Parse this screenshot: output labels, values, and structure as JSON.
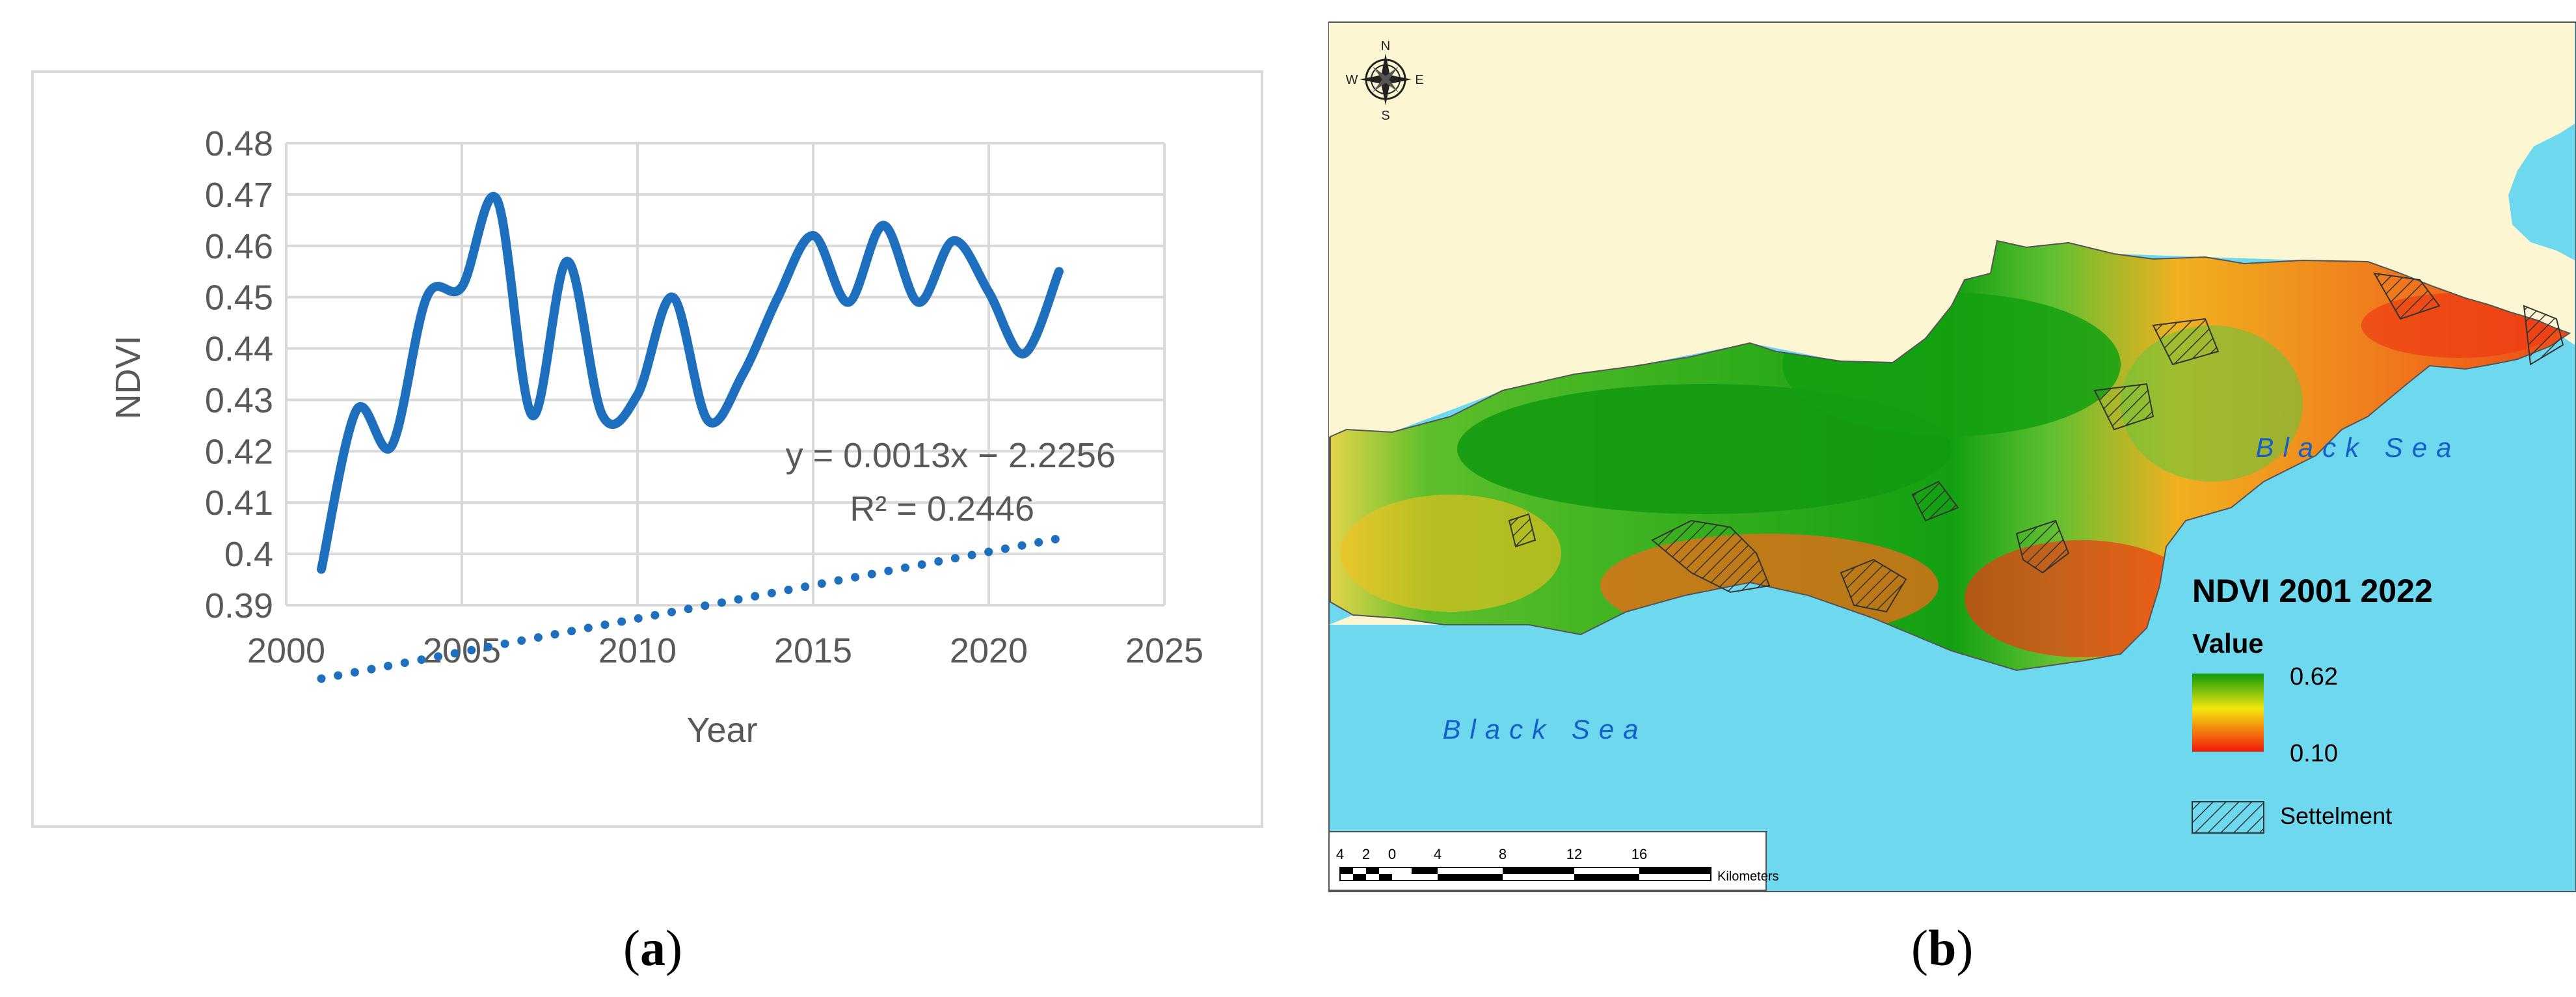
{
  "panel_a": {
    "label_open": "(",
    "label_letter": "a",
    "label_close": ")",
    "equation": "y = 0.0013x − 2.2256",
    "r_squared": "R² = 0.2446"
  },
  "panel_b": {
    "label_open": "(",
    "label_letter": "b",
    "label_close": ")",
    "legend_title": "NDVI 2001 2022",
    "legend_value_heading": "Value",
    "legend_high": "0.62",
    "legend_low": "0.10",
    "legend_settlement": "Settelment",
    "sea_label_east": "Black Sea",
    "sea_label_south": "Black Sea",
    "compass_n": "N",
    "compass_s": "S",
    "compass_e": "E",
    "compass_w": "W",
    "scale_ticks": [
      "4",
      "2",
      "0",
      "4",
      "8",
      "12",
      "16"
    ],
    "scale_unit": "Kilometers",
    "colors": {
      "land": "#fcf6d2",
      "sea": "#6ed8ee",
      "high": "#0a9a0a",
      "mid": "#f5e60f",
      "low": "#f01a0a"
    }
  },
  "chart_data": {
    "type": "line",
    "xlabel": "Year",
    "ylabel": "NDVI",
    "xlim": [
      2000,
      2025
    ],
    "ylim": [
      0.39,
      0.48
    ],
    "x_ticks": [
      "2000",
      "2005",
      "2010",
      "2015",
      "2020",
      "2025"
    ],
    "y_ticks": [
      "0.48",
      "0.47",
      "0.46",
      "0.45",
      "0.44",
      "0.43",
      "0.42",
      "0.41",
      "0.4",
      "0.39"
    ],
    "grid": true,
    "series": [
      {
        "x": [
          2001,
          2002,
          2003,
          2004,
          2005,
          2006,
          2007,
          2008,
          2009,
          2010,
          2011,
          2012,
          2013,
          2014,
          2015,
          2016,
          2017,
          2018,
          2019,
          2020,
          2021,
          2022
        ],
        "values": [
          0.397,
          0.428,
          0.421,
          0.45,
          0.452,
          0.469,
          0.427,
          0.457,
          0.427,
          0.431,
          0.45,
          0.426,
          0.435,
          0.45,
          0.462,
          0.449,
          0.464,
          0.449,
          0.461,
          0.451,
          0.439,
          0.455
        ],
        "color": "#1f6fbf"
      }
    ],
    "trendline": {
      "slope": 0.0013,
      "intercept": -2.2256,
      "style": "dotted"
    }
  }
}
